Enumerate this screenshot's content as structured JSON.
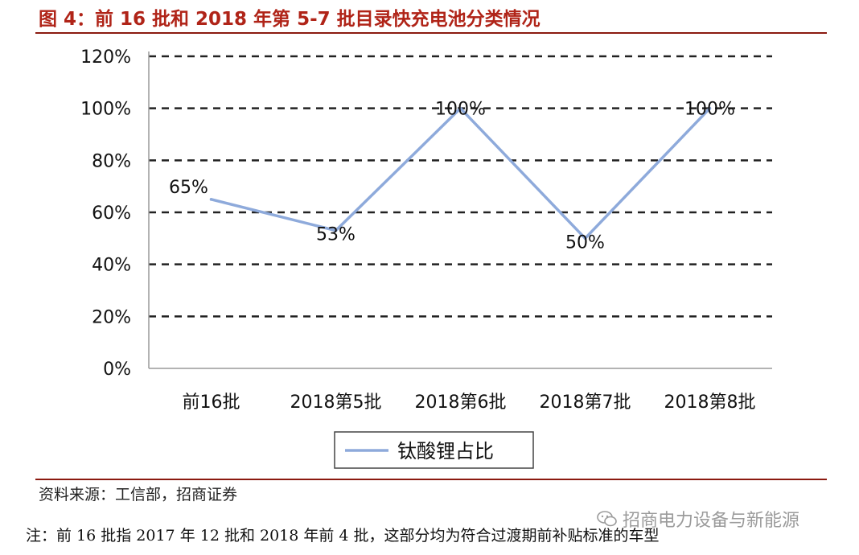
{
  "figure": {
    "title": "图 4：前 16 批和 2018 年第 5-7 批目录快充电池分类情况",
    "source": "资料来源：工信部，招商证券",
    "footnote": "注：前 16 批指 2017 年 12 批和 2018 年前 4 批，这部分均为符合过渡期前补贴标准的车型",
    "watermark": "招商电力设备与新能源",
    "watermark_icon": "wechat-icon",
    "accent_color": "#b02418"
  },
  "chart_data": {
    "type": "line",
    "categories": [
      "前16批",
      "2018第5批",
      "2018第6批",
      "2018第7批",
      "2018第8批"
    ],
    "series": [
      {
        "name": "钛酸锂占比",
        "values": [
          65,
          53,
          100,
          50,
          100
        ],
        "labels": [
          "65%",
          "53%",
          "100%",
          "50%",
          "100%"
        ],
        "color": "#8eaadb"
      }
    ],
    "y_ticks": [
      "0%",
      "20%",
      "40%",
      "60%",
      "80%",
      "100%",
      "120%"
    ],
    "ylim": [
      0,
      120
    ],
    "grid": true,
    "grid_style": "dashed",
    "legend_position": "bottom"
  }
}
